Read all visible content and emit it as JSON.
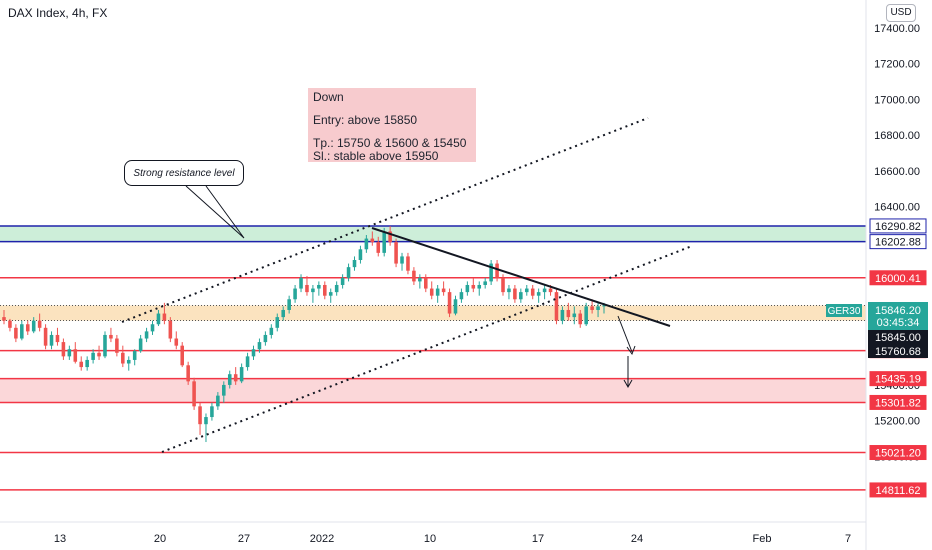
{
  "header": {
    "title": "DAX Index, 4h, FX",
    "currency_button": "USD"
  },
  "note": {
    "line1": "Down",
    "line2": "Entry: above 15850",
    "line3": "Tp.: 15750 & 15600 & 15450",
    "line4": "Sl.: stable above 15950"
  },
  "callout": {
    "text": "Strong resistance level"
  },
  "colors": {
    "up": "#26a69a",
    "down": "#ef5350",
    "red_line": "#f23645",
    "blue_line": "#1e22aa",
    "green_zone": "#cdeed9",
    "orange_zone": "#fbe3bf",
    "red_zone": "#fbd7d9",
    "ticker": "#26a69a"
  },
  "chart_data": {
    "type": "candlestick",
    "symbol": "GER30",
    "y_ticks": [
      "17400.00",
      "17200.00",
      "17000.00",
      "16800.00",
      "16600.00",
      "16400.00",
      "16200.00",
      "16000.00",
      "15800.00",
      "15600.00",
      "15400.00",
      "15200.00",
      "15000.00",
      "14800.00"
    ],
    "y_tick_values": [
      17400,
      17200,
      17000,
      16800,
      16600,
      16400,
      16200,
      16000,
      15800,
      15600,
      15400,
      15200,
      15000,
      14800
    ],
    "x_ticks": [
      "13",
      "20",
      "27",
      "2022",
      "10",
      "17",
      "24",
      "Feb",
      "7"
    ],
    "ylim": [
      14720,
      17500
    ],
    "horizontal_levels": [
      {
        "value": 16290.82,
        "label": "16290.82",
        "color": "blue"
      },
      {
        "value": 16202.88,
        "label": "16202.88",
        "color": "blue"
      },
      {
        "value": 16000.41,
        "label": "16000.41",
        "color": "red"
      },
      {
        "value": 15591.91,
        "label": "15591.91",
        "color": "red"
      },
      {
        "value": 15435.19,
        "label": "15435.19",
        "color": "red"
      },
      {
        "value": 15301.82,
        "label": "15301.82",
        "color": "red"
      },
      {
        "value": 15021.2,
        "label": "15021.20",
        "color": "red"
      },
      {
        "value": 14811.62,
        "label": "14811.62",
        "color": "red"
      }
    ],
    "zones": [
      {
        "from": 16202.88,
        "to": 16290.82,
        "color": "green"
      },
      {
        "from": 15760.68,
        "to": 15845.0,
        "color": "orange"
      },
      {
        "from": 15301.82,
        "to": 15435.19,
        "color": "red"
      }
    ],
    "price_labels": [
      {
        "label": "GER30",
        "value": "15846.20",
        "countdown": "03:45:34"
      },
      {
        "value": "15845.00"
      },
      {
        "value": "15760.68"
      }
    ],
    "candles": [
      [
        15780,
        15820,
        15740,
        15760
      ],
      [
        15760,
        15770,
        15700,
        15720
      ],
      [
        15720,
        15740,
        15640,
        15660
      ],
      [
        15660,
        15760,
        15650,
        15740
      ],
      [
        15740,
        15760,
        15680,
        15700
      ],
      [
        15700,
        15780,
        15690,
        15760
      ],
      [
        15760,
        15800,
        15700,
        15720
      ],
      [
        15720,
        15740,
        15600,
        15620
      ],
      [
        15620,
        15700,
        15600,
        15680
      ],
      [
        15680,
        15720,
        15620,
        15640
      ],
      [
        15640,
        15660,
        15540,
        15560
      ],
      [
        15560,
        15620,
        15540,
        15600
      ],
      [
        15600,
        15640,
        15520,
        15530
      ],
      [
        15530,
        15560,
        15480,
        15500
      ],
      [
        15500,
        15560,
        15480,
        15540
      ],
      [
        15540,
        15600,
        15520,
        15580
      ],
      [
        15580,
        15620,
        15540,
        15560
      ],
      [
        15560,
        15700,
        15550,
        15680
      ],
      [
        15680,
        15720,
        15640,
        15660
      ],
      [
        15660,
        15680,
        15560,
        15580
      ],
      [
        15580,
        15620,
        15500,
        15520
      ],
      [
        15520,
        15560,
        15480,
        15540
      ],
      [
        15540,
        15600,
        15510,
        15590
      ],
      [
        15590,
        15680,
        15580,
        15660
      ],
      [
        15660,
        15720,
        15640,
        15700
      ],
      [
        15700,
        15760,
        15680,
        15740
      ],
      [
        15740,
        15820,
        15730,
        15800
      ],
      [
        15800,
        15860,
        15740,
        15760
      ],
      [
        15760,
        15780,
        15640,
        15660
      ],
      [
        15660,
        15700,
        15600,
        15620
      ],
      [
        15620,
        15640,
        15500,
        15510
      ],
      [
        15510,
        15530,
        15400,
        15420
      ],
      [
        15420,
        15440,
        15260,
        15280
      ],
      [
        15280,
        15300,
        15120,
        15180
      ],
      [
        15180,
        15240,
        15080,
        15220
      ],
      [
        15220,
        15300,
        15200,
        15280
      ],
      [
        15280,
        15360,
        15260,
        15340
      ],
      [
        15340,
        15420,
        15300,
        15400
      ],
      [
        15400,
        15480,
        15380,
        15460
      ],
      [
        15460,
        15500,
        15400,
        15420
      ],
      [
        15420,
        15520,
        15410,
        15500
      ],
      [
        15500,
        15580,
        15480,
        15560
      ],
      [
        15560,
        15620,
        15540,
        15600
      ],
      [
        15600,
        15660,
        15580,
        15640
      ],
      [
        15640,
        15700,
        15620,
        15680
      ],
      [
        15680,
        15740,
        15660,
        15720
      ],
      [
        15720,
        15800,
        15700,
        15780
      ],
      [
        15780,
        15840,
        15760,
        15820
      ],
      [
        15820,
        15900,
        15800,
        15880
      ],
      [
        15880,
        15960,
        15860,
        15940
      ],
      [
        15940,
        16020,
        15920,
        16000
      ],
      [
        15960,
        16010,
        15900,
        15920
      ],
      [
        15920,
        15960,
        15860,
        15940
      ],
      [
        15940,
        15980,
        15900,
        15960
      ],
      [
        15960,
        15980,
        15880,
        15900
      ],
      [
        15900,
        15940,
        15860,
        15920
      ],
      [
        15920,
        15980,
        15900,
        15960
      ],
      [
        15960,
        16020,
        15940,
        16000
      ],
      [
        16000,
        16080,
        15980,
        16060
      ],
      [
        16060,
        16120,
        16040,
        16100
      ],
      [
        16100,
        16180,
        16080,
        16160
      ],
      [
        16160,
        16240,
        16140,
        16220
      ],
      [
        16220,
        16260,
        16180,
        16200
      ],
      [
        16200,
        16230,
        16120,
        16140
      ],
      [
        16140,
        16280,
        16120,
        16260
      ],
      [
        16260,
        16290,
        16180,
        16200
      ],
      [
        16200,
        16220,
        16060,
        16080
      ],
      [
        16080,
        16140,
        16040,
        16120
      ],
      [
        16120,
        16140,
        16020,
        16040
      ],
      [
        16040,
        16060,
        15960,
        15980
      ],
      [
        15980,
        16020,
        15940,
        16000
      ],
      [
        16000,
        16020,
        15920,
        15940
      ],
      [
        15940,
        15980,
        15880,
        15900
      ],
      [
        15900,
        15960,
        15860,
        15940
      ],
      [
        15940,
        15980,
        15900,
        15920
      ],
      [
        15920,
        15940,
        15780,
        15800
      ],
      [
        15800,
        15900,
        15790,
        15880
      ],
      [
        15880,
        15940,
        15860,
        15920
      ],
      [
        15920,
        15980,
        15900,
        15960
      ],
      [
        15960,
        16000,
        15920,
        15940
      ],
      [
        15940,
        15980,
        15900,
        15960
      ],
      [
        15960,
        16000,
        15940,
        15980
      ],
      [
        15980,
        16100,
        15960,
        16080
      ],
      [
        16080,
        16100,
        15980,
        16000
      ],
      [
        16000,
        16020,
        15900,
        15920
      ],
      [
        15920,
        15960,
        15880,
        15940
      ],
      [
        15940,
        15960,
        15860,
        15880
      ],
      [
        15880,
        15940,
        15860,
        15920
      ],
      [
        15920,
        15960,
        15900,
        15940
      ],
      [
        15940,
        15960,
        15880,
        15900
      ],
      [
        15900,
        15940,
        15860,
        15920
      ],
      [
        15920,
        15960,
        15880,
        15940
      ],
      [
        15940,
        15960,
        15900,
        15920
      ],
      [
        15920,
        15940,
        15740,
        15760
      ],
      [
        15760,
        15840,
        15740,
        15820
      ],
      [
        15820,
        15860,
        15760,
        15780
      ],
      [
        15780,
        15840,
        15740,
        15800
      ],
      [
        15800,
        15820,
        15720,
        15740
      ],
      [
        15740,
        15860,
        15730,
        15840
      ],
      [
        15840,
        15880,
        15800,
        15820
      ],
      [
        15820,
        15860,
        15780,
        15840
      ],
      [
        15840,
        15860,
        15800,
        15846
      ]
    ]
  }
}
